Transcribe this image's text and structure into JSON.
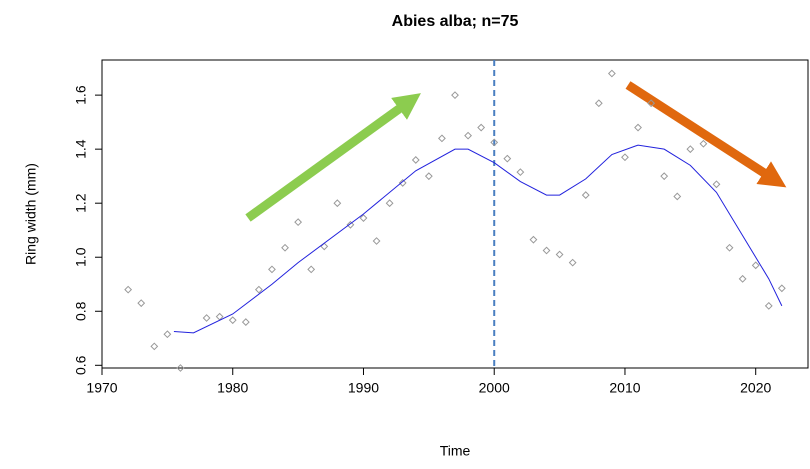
{
  "chart_data": {
    "type": "scatter",
    "title": "Abies alba; n=75",
    "x_label": "Time",
    "y_label": "Ring width (mm)",
    "x": [
      1972,
      1973,
      1974,
      1975,
      1976,
      1978,
      1979,
      1980,
      1981,
      1982,
      1983,
      1984,
      1985,
      1986,
      1987,
      1988,
      1989,
      1990,
      1991,
      1992,
      1993,
      1994,
      1995,
      1996,
      1997,
      1998,
      1999,
      2000,
      2001,
      2002,
      2003,
      2004,
      2005,
      2006,
      2007,
      2008,
      2009,
      2010,
      2011,
      2012,
      2013,
      2014,
      2015,
      2016,
      2017,
      2018,
      2019,
      2020,
      2021,
      2022
    ],
    "values": [
      0.88,
      0.83,
      0.67,
      0.715,
      0.59,
      0.775,
      0.78,
      0.767,
      0.76,
      0.88,
      0.955,
      1.035,
      1.13,
      0.955,
      1.04,
      1.2,
      1.12,
      1.145,
      1.06,
      1.2,
      1.275,
      1.36,
      1.3,
      1.44,
      1.6,
      1.45,
      1.48,
      1.425,
      1.365,
      1.315,
      1.065,
      1.025,
      1.01,
      0.98,
      1.23,
      1.57,
      1.68,
      1.37,
      1.48,
      1.57,
      1.3,
      1.225,
      1.4,
      1.42,
      1.27,
      1.035,
      0.92,
      0.97,
      0.82,
      0.885
    ],
    "color": "#999999",
    "smooth": {
      "x": [
        1975.5,
        1977,
        1980,
        1983,
        1985,
        1990,
        1994,
        1997,
        1998,
        2000,
        2002,
        2004,
        2005,
        2007,
        2009,
        2011,
        2013,
        2015,
        2017,
        2019,
        2021,
        2022
      ],
      "values": [
        0.725,
        0.72,
        0.79,
        0.9,
        0.98,
        1.16,
        1.32,
        1.4,
        1.4,
        1.35,
        1.28,
        1.23,
        1.23,
        1.29,
        1.38,
        1.415,
        1.4,
        1.34,
        1.24,
        1.08,
        0.92,
        0.82
      ],
      "color": "#2222dd"
    },
    "vline": 2000,
    "vline_color": "#4a7fc1",
    "xlim": [
      1970,
      2024
    ],
    "ylim": [
      0.59,
      1.73
    ],
    "xticks": [
      1970,
      1980,
      1990,
      2000,
      2010,
      2020
    ],
    "yticks": [
      0.6,
      0.8,
      {
        "value": 1,
        "label": "1.0"
      },
      1.2,
      1.4,
      1.6
    ]
  }
}
